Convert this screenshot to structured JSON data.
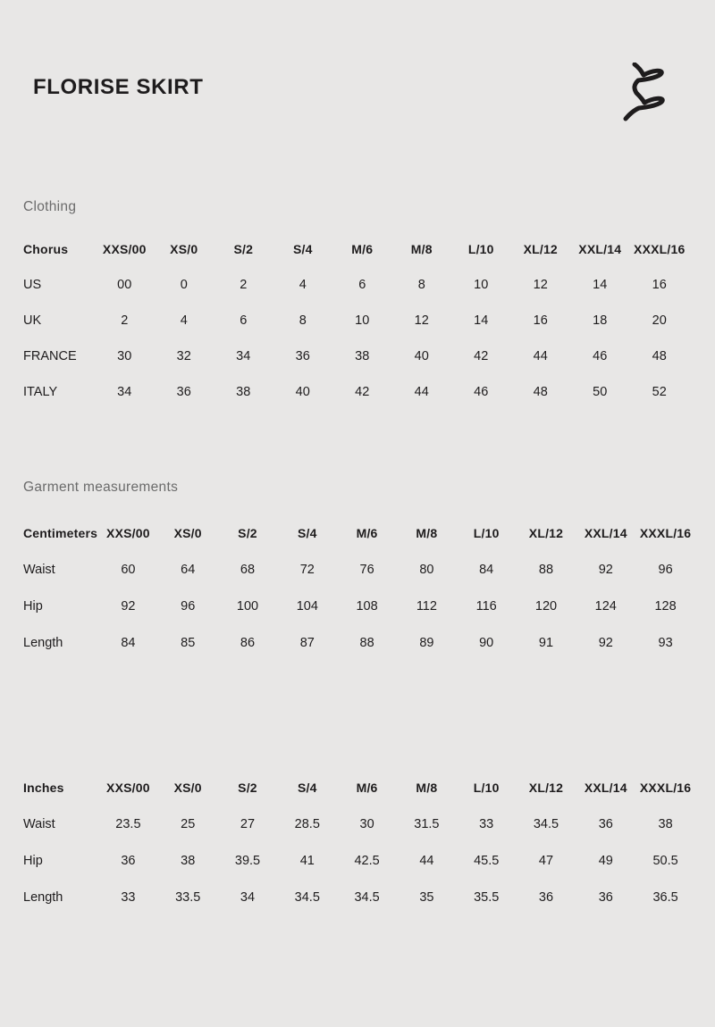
{
  "page": {
    "title": "FLORISE SKIRT",
    "brand_logo": "chorus-script-logo",
    "colors": {
      "background": "#e8e7e6",
      "text": "#1e1c1d",
      "muted_heading": "#6b6b6b"
    }
  },
  "sections": {
    "clothing": {
      "heading": "Clothing",
      "table": {
        "header_label": "Chorus",
        "columns": [
          "XXS/00",
          "XS/0",
          "S/2",
          "S/4",
          "M/6",
          "M/8",
          "L/10",
          "XL/12",
          "XXL/14",
          "XXXL/16"
        ],
        "rows": [
          {
            "label": "US",
            "values": [
              "00",
              "0",
              "2",
              "4",
              "6",
              "8",
              "10",
              "12",
              "14",
              "16"
            ]
          },
          {
            "label": "UK",
            "values": [
              "2",
              "4",
              "6",
              "8",
              "10",
              "12",
              "14",
              "16",
              "18",
              "20"
            ]
          },
          {
            "label": "FRANCE",
            "values": [
              "30",
              "32",
              "34",
              "36",
              "38",
              "40",
              "42",
              "44",
              "46",
              "48"
            ]
          },
          {
            "label": "ITALY",
            "values": [
              "34",
              "36",
              "38",
              "40",
              "42",
              "44",
              "46",
              "48",
              "50",
              "52"
            ]
          }
        ]
      }
    },
    "garment": {
      "heading": "Garment measurements",
      "cm_table": {
        "header_label": "Centimeters",
        "columns": [
          "XXS/00",
          "XS/0",
          "S/2",
          "S/4",
          "M/6",
          "M/8",
          "L/10",
          "XL/12",
          "XXL/14",
          "XXXL/16"
        ],
        "rows": [
          {
            "label": "Waist",
            "values": [
              "60",
              "64",
              "68",
              "72",
              "76",
              "80",
              "84",
              "88",
              "92",
              "96"
            ]
          },
          {
            "label": "Hip",
            "values": [
              "92",
              "96",
              "100",
              "104",
              "108",
              "112",
              "116",
              "120",
              "124",
              "128"
            ]
          },
          {
            "label": "Length",
            "values": [
              "84",
              "85",
              "86",
              "87",
              "88",
              "89",
              "90",
              "91",
              "92",
              "93"
            ]
          }
        ]
      },
      "inches_table": {
        "header_label": "Inches",
        "columns": [
          "XXS/00",
          "XS/0",
          "S/2",
          "S/4",
          "M/6",
          "M/8",
          "L/10",
          "XL/12",
          "XXL/14",
          "XXXL/16"
        ],
        "rows": [
          {
            "label": "Waist",
            "values": [
              "23.5",
              "25",
              "27",
              "28.5",
              "30",
              "31.5",
              "33",
              "34.5",
              "36",
              "38"
            ]
          },
          {
            "label": "Hip",
            "values": [
              "36",
              "38",
              "39.5",
              "41",
              "42.5",
              "44",
              "45.5",
              "47",
              "49",
              "50.5"
            ]
          },
          {
            "label": "Length",
            "values": [
              "33",
              "33.5",
              "34",
              "34.5",
              "34.5",
              "35",
              "35.5",
              "36",
              "36",
              "36.5"
            ]
          }
        ]
      }
    }
  }
}
